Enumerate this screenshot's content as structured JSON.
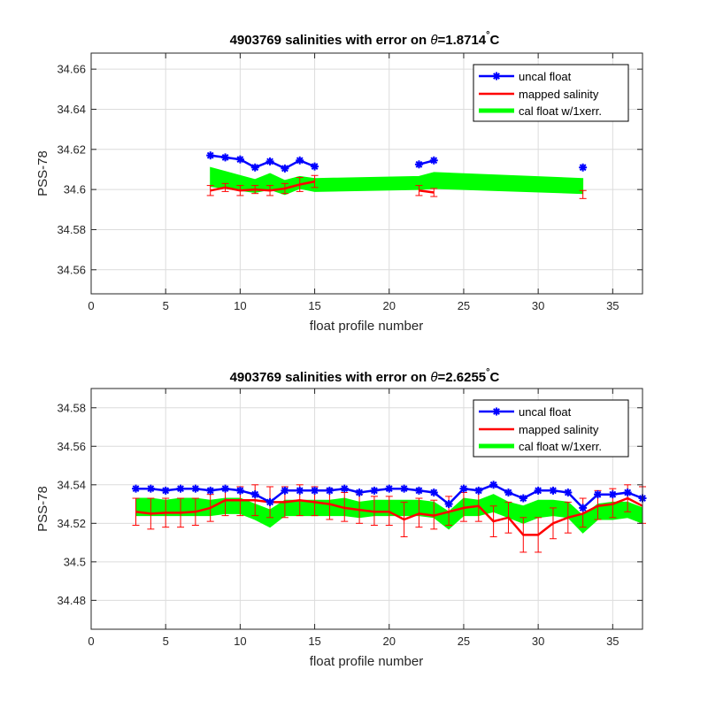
{
  "chart_data": [
    {
      "type": "line",
      "title_prefix": "4903769 salinities with error on ",
      "title_theta": "θ",
      "title_value": "=1.8714",
      "title_deg": "°",
      "title_unit": "C",
      "xlabel": "float profile number",
      "ylabel": "PSS-78",
      "xlim": [
        0,
        37
      ],
      "ylim": [
        34.548,
        34.668
      ],
      "xticks": [
        0,
        5,
        10,
        15,
        20,
        25,
        30,
        35
      ],
      "xtick_labels": [
        "0",
        "5",
        "10",
        "15",
        "20",
        "25",
        "30",
        "35"
      ],
      "yticks": [
        34.56,
        34.58,
        34.6,
        34.62,
        34.64,
        34.66
      ],
      "ytick_labels": [
        "34.56",
        "34.58",
        "34.6",
        "34.62",
        "34.64",
        "34.66"
      ],
      "grid": true,
      "legend_position": "top-right",
      "legend": [
        "uncal float",
        "mapped salinity",
        "cal float w/1xerr."
      ],
      "colors": {
        "uncal": "#0000ff",
        "mapped": "#ff0000",
        "cal": "#00ff00"
      },
      "uncal_segments": [
        {
          "x": [
            8,
            9,
            10,
            11,
            12,
            13,
            14,
            15
          ],
          "y": [
            34.617,
            34.616,
            34.615,
            34.611,
            34.614,
            34.6105,
            34.6145,
            34.6115
          ]
        },
        {
          "x": [
            22,
            23
          ],
          "y": [
            34.6125,
            34.6145
          ]
        },
        {
          "x": [
            33
          ],
          "y": [
            34.611
          ]
        }
      ],
      "mapped_segments": [
        {
          "x": [
            8,
            9,
            10,
            11,
            12,
            13,
            14,
            15
          ],
          "y": [
            34.5995,
            34.601,
            34.5995,
            34.6,
            34.5995,
            34.6005,
            34.6025,
            34.604
          ]
        },
        {
          "x": [
            22,
            23
          ],
          "y": [
            34.5995,
            34.5985
          ]
        },
        {
          "x": [
            33
          ],
          "y": [
            34.5975
          ]
        }
      ],
      "mapped_errors": [
        {
          "x": 8,
          "lo": 34.597,
          "hi": 34.602
        },
        {
          "x": 9,
          "lo": 34.599,
          "hi": 34.603
        },
        {
          "x": 10,
          "lo": 34.597,
          "hi": 34.602
        },
        {
          "x": 11,
          "lo": 34.598,
          "hi": 34.602
        },
        {
          "x": 12,
          "lo": 34.597,
          "hi": 34.602
        },
        {
          "x": 13,
          "lo": 34.598,
          "hi": 34.603
        },
        {
          "x": 14,
          "lo": 34.599,
          "hi": 34.606
        },
        {
          "x": 15,
          "lo": 34.601,
          "hi": 34.607
        },
        {
          "x": 22,
          "lo": 34.597,
          "hi": 34.602
        },
        {
          "x": 23,
          "lo": 34.5965,
          "hi": 34.6005
        },
        {
          "x": 33,
          "lo": 34.5955,
          "hi": 34.5995
        }
      ],
      "cal_band": {
        "x": [
          8,
          9,
          10,
          11,
          12,
          13,
          14,
          15,
          22,
          23,
          33
        ],
        "lower": [
          34.6015,
          34.6005,
          34.5995,
          34.5985,
          34.6,
          34.5975,
          34.6005,
          34.599,
          34.6,
          34.6005,
          34.598
        ],
        "upper": [
          34.611,
          34.609,
          34.607,
          34.605,
          34.608,
          34.6045,
          34.6065,
          34.6055,
          34.6065,
          34.6085,
          34.6055
        ]
      }
    },
    {
      "type": "line",
      "title_prefix": "4903769 salinities with error on ",
      "title_theta": "θ",
      "title_value": "=2.6255",
      "title_deg": "°",
      "title_unit": "C",
      "xlabel": "float profile number",
      "ylabel": "PSS-78",
      "xlim": [
        0,
        37
      ],
      "ylim": [
        34.465,
        34.59
      ],
      "xticks": [
        0,
        5,
        10,
        15,
        20,
        25,
        30,
        35
      ],
      "xtick_labels": [
        "0",
        "5",
        "10",
        "15",
        "20",
        "25",
        "30",
        "35"
      ],
      "yticks": [
        34.48,
        34.5,
        34.52,
        34.54,
        34.56,
        34.58
      ],
      "ytick_labels": [
        "34.48",
        "34.5",
        "34.52",
        "34.54",
        "34.56",
        "34.58"
      ],
      "grid": true,
      "legend_position": "top-right",
      "legend": [
        "uncal float",
        "mapped salinity",
        "cal float w/1xerr."
      ],
      "colors": {
        "uncal": "#0000ff",
        "mapped": "#ff0000",
        "cal": "#00ff00"
      },
      "uncal_segments": [
        {
          "x": [
            3,
            4,
            5,
            6,
            7,
            8,
            9,
            10,
            11,
            12,
            13,
            14,
            15,
            16,
            17,
            18,
            19,
            20,
            21,
            22,
            23,
            24,
            25,
            26,
            27,
            28,
            29,
            30,
            31,
            32,
            33,
            34,
            35,
            36,
            37
          ],
          "y": [
            34.538,
            34.538,
            34.537,
            34.538,
            34.538,
            34.537,
            34.538,
            34.537,
            34.535,
            34.531,
            34.537,
            34.537,
            34.537,
            34.537,
            34.538,
            34.536,
            34.537,
            34.538,
            34.538,
            34.537,
            34.536,
            34.53,
            34.538,
            34.537,
            34.54,
            34.536,
            34.533,
            34.537,
            34.537,
            34.536,
            34.528,
            34.535,
            34.535,
            34.536,
            34.533
          ]
        }
      ],
      "mapped_segments": [
        {
          "x": [
            3,
            4,
            5,
            6,
            7,
            8,
            9,
            10,
            11,
            12,
            13,
            14,
            15,
            16,
            17,
            18,
            19,
            20,
            21,
            22,
            23,
            24,
            25,
            26,
            27,
            28,
            29,
            30,
            31,
            32,
            33,
            34,
            35,
            36,
            37
          ],
          "y": [
            34.526,
            34.525,
            34.5255,
            34.5255,
            34.526,
            34.528,
            34.532,
            34.532,
            34.532,
            34.531,
            34.531,
            34.532,
            34.531,
            34.53,
            34.528,
            34.527,
            34.526,
            34.526,
            34.522,
            34.525,
            34.524,
            34.526,
            34.528,
            34.529,
            34.521,
            34.523,
            34.514,
            34.514,
            34.52,
            34.523,
            34.525,
            34.529,
            34.53,
            34.533,
            34.529
          ]
        }
      ],
      "mapped_errors": [
        {
          "x": 3,
          "lo": 34.519,
          "hi": 34.533
        },
        {
          "x": 4,
          "lo": 34.517,
          "hi": 34.533
        },
        {
          "x": 5,
          "lo": 34.518,
          "hi": 34.533
        },
        {
          "x": 6,
          "lo": 34.518,
          "hi": 34.533
        },
        {
          "x": 7,
          "lo": 34.519,
          "hi": 34.533
        },
        {
          "x": 8,
          "lo": 34.521,
          "hi": 34.535
        },
        {
          "x": 9,
          "lo": 34.524,
          "hi": 34.538
        },
        {
          "x": 10,
          "lo": 34.524,
          "hi": 34.539
        },
        {
          "x": 11,
          "lo": 34.524,
          "hi": 34.54
        },
        {
          "x": 12,
          "lo": 34.523,
          "hi": 34.539
        },
        {
          "x": 13,
          "lo": 34.523,
          "hi": 34.539
        },
        {
          "x": 14,
          "lo": 34.524,
          "hi": 34.54
        },
        {
          "x": 15,
          "lo": 34.524,
          "hi": 34.539
        },
        {
          "x": 16,
          "lo": 34.522,
          "hi": 34.538
        },
        {
          "x": 17,
          "lo": 34.521,
          "hi": 34.536
        },
        {
          "x": 18,
          "lo": 34.52,
          "hi": 34.535
        },
        {
          "x": 19,
          "lo": 34.519,
          "hi": 34.534
        },
        {
          "x": 20,
          "lo": 34.519,
          "hi": 34.534
        },
        {
          "x": 21,
          "lo": 34.513,
          "hi": 34.531
        },
        {
          "x": 22,
          "lo": 34.518,
          "hi": 34.533
        },
        {
          "x": 23,
          "lo": 34.517,
          "hi": 34.532
        },
        {
          "x": 24,
          "lo": 34.519,
          "hi": 34.534
        },
        {
          "x": 25,
          "lo": 34.521,
          "hi": 34.536
        },
        {
          "x": 26,
          "lo": 34.521,
          "hi": 34.537
        },
        {
          "x": 27,
          "lo": 34.513,
          "hi": 34.529
        },
        {
          "x": 28,
          "lo": 34.515,
          "hi": 34.531
        },
        {
          "x": 29,
          "lo": 34.505,
          "hi": 34.523
        },
        {
          "x": 30,
          "lo": 34.505,
          "hi": 34.523
        },
        {
          "x": 31,
          "lo": 34.512,
          "hi": 34.528
        },
        {
          "x": 32,
          "lo": 34.515,
          "hi": 34.531
        },
        {
          "x": 33,
          "lo": 34.518,
          "hi": 34.533
        },
        {
          "x": 34,
          "lo": 34.522,
          "hi": 34.537
        },
        {
          "x": 35,
          "lo": 34.523,
          "hi": 34.538
        },
        {
          "x": 36,
          "lo": 34.526,
          "hi": 34.54
        },
        {
          "x": 37,
          "lo": 34.52,
          "hi": 34.539
        }
      ],
      "cal_band": {
        "x": [
          3,
          4,
          5,
          6,
          7,
          8,
          9,
          10,
          11,
          12,
          13,
          14,
          15,
          16,
          17,
          18,
          19,
          20,
          21,
          22,
          23,
          24,
          25,
          26,
          27,
          28,
          29,
          30,
          31,
          32,
          33,
          34,
          35,
          36,
          37
        ],
        "lower": [
          34.524,
          34.524,
          34.524,
          34.524,
          34.524,
          34.524,
          34.525,
          34.525,
          34.522,
          34.518,
          34.524,
          34.524,
          34.524,
          34.524,
          34.524,
          34.523,
          34.524,
          34.524,
          34.524,
          34.524,
          34.523,
          34.517,
          34.524,
          34.524,
          34.526,
          34.523,
          34.52,
          34.523,
          34.524,
          34.523,
          34.515,
          34.522,
          34.522,
          34.523,
          34.52
        ],
        "upper": [
          34.533,
          34.533,
          34.532,
          34.533,
          34.533,
          34.532,
          34.533,
          34.533,
          34.53,
          34.527,
          34.532,
          34.532,
          34.532,
          34.532,
          34.533,
          34.531,
          34.532,
          34.532,
          34.532,
          34.532,
          34.531,
          34.526,
          34.533,
          34.532,
          34.535,
          34.531,
          34.529,
          34.532,
          34.532,
          34.531,
          34.524,
          34.53,
          34.531,
          34.531,
          34.528
        ]
      }
    }
  ]
}
